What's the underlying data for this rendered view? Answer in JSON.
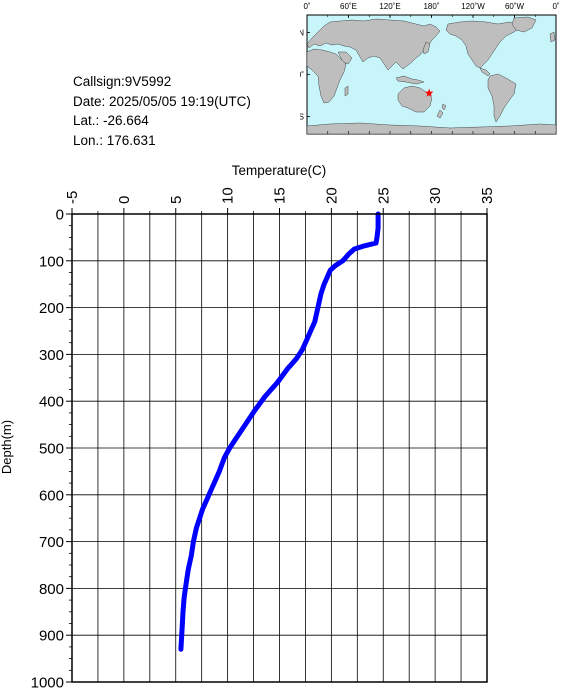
{
  "info": {
    "callsign": "Callsign:9V5992",
    "date": "Date:  2025/05/05 19:19(UTC)",
    "lat": "Lat.:  -26.664",
    "lon": "Lon.:  176.631"
  },
  "map": {
    "lon_labels": [
      "0˚",
      "60˚E",
      "120˚E",
      "180˚",
      "120˚W",
      "60˚W",
      "0˚"
    ],
    "lat_labels": [
      "60˚N",
      "0˚",
      "60˚S"
    ],
    "ocean_color": "#c8f5fa",
    "land_color": "#bebebe",
    "marker_color": "#ff0000",
    "marker_icon": "star-icon",
    "station": {
      "lat": -26.664,
      "lon": 176.631
    }
  },
  "chart_data": {
    "type": "line",
    "xlabel": "Temperature(C)",
    "ylabel": "Depth(m)",
    "xlim": [
      -5,
      35
    ],
    "ylim": [
      0,
      1000
    ],
    "y_inverted": true,
    "x_axis_position": "top",
    "x_ticks": [
      -5,
      0,
      5,
      10,
      15,
      20,
      25,
      30,
      35
    ],
    "x_tick_labels": [
      "-5",
      "0",
      "5",
      "10",
      "15",
      "20",
      "25",
      "30",
      "35"
    ],
    "y_ticks": [
      0,
      100,
      200,
      300,
      400,
      500,
      600,
      700,
      800,
      900,
      1000
    ],
    "y_tick_labels": [
      "0",
      "100",
      "200",
      "300",
      "400",
      "500",
      "600",
      "700",
      "800",
      "900",
      "1000"
    ],
    "grid": true,
    "line_color": "#0000ff",
    "series": [
      {
        "temperature": [
          24.5,
          24.5,
          24.4,
          24.3,
          23.2,
          22.2,
          21.7,
          21.1,
          20.4,
          19.9,
          19.6,
          19.3,
          19.0,
          18.7,
          18.4,
          18.0,
          17.6,
          17.2,
          16.6,
          15.8,
          14.8,
          13.6,
          12.6,
          11.7,
          10.8,
          10.2,
          9.7,
          9.2,
          8.8,
          8.4,
          8.0,
          7.6,
          7.3,
          7.0,
          6.7,
          6.5,
          6.2,
          6.0,
          5.8,
          5.7,
          5.6,
          5.5
        ],
        "depth": [
          0,
          30,
          50,
          62,
          68,
          75,
          85,
          100,
          110,
          120,
          135,
          150,
          170,
          200,
          230,
          250,
          270,
          290,
          310,
          330,
          360,
          390,
          420,
          450,
          480,
          500,
          520,
          550,
          570,
          590,
          610,
          630,
          650,
          670,
          700,
          730,
          760,
          790,
          820,
          850,
          890,
          930
        ]
      }
    ]
  }
}
